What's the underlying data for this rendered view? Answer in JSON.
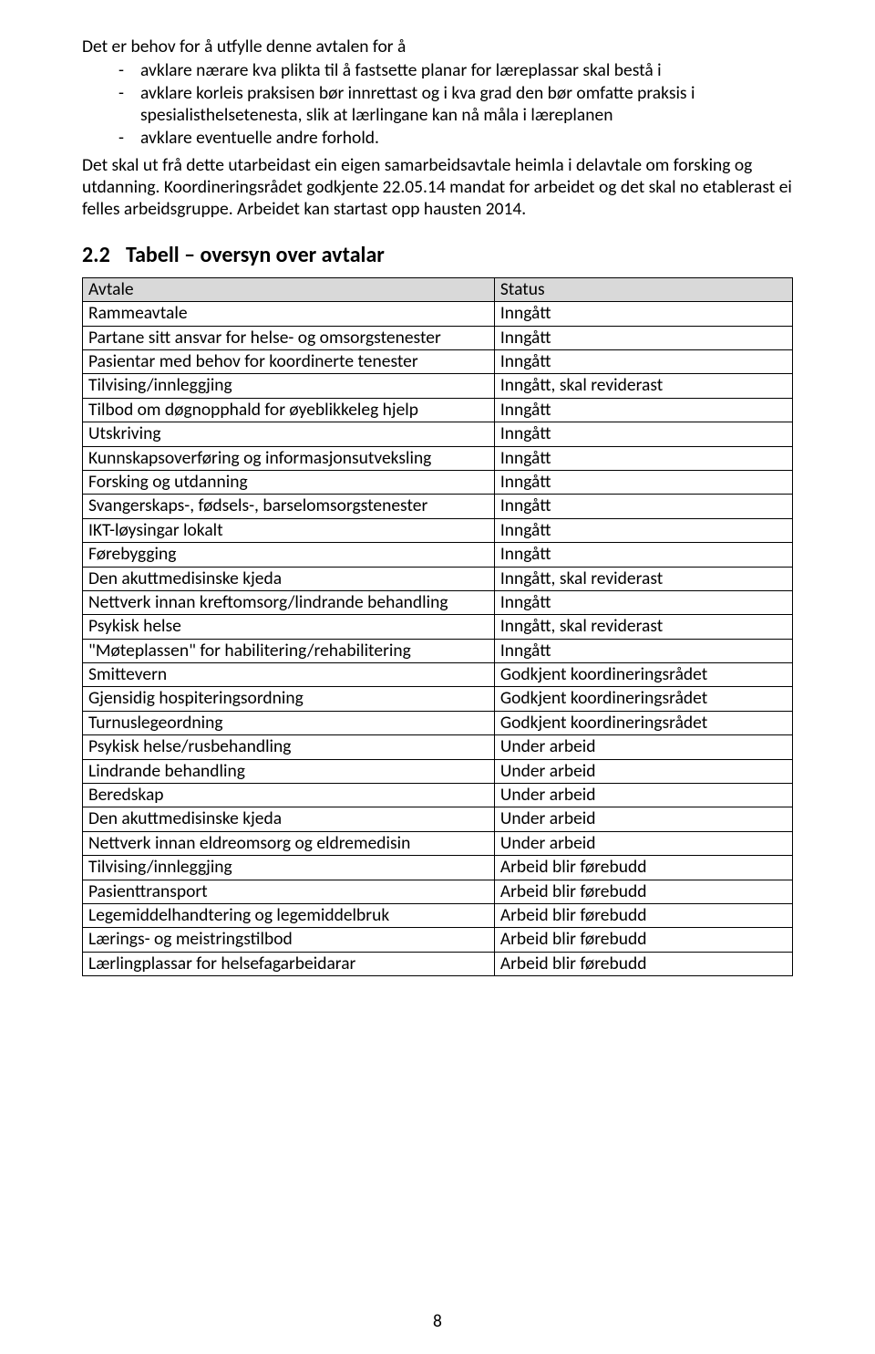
{
  "colors": {
    "page_bg": "#ffffff",
    "text": "#000000",
    "table_border": "#000000",
    "table_header_bg": "#d9d9d9"
  },
  "fonts": {
    "body_family": "Calibri",
    "body_size_pt": 11,
    "h2_size_pt": 13,
    "h2_weight": "bold"
  },
  "intro_line": "Det er behov for å utfylle denne avtalen for å",
  "bullets": [
    "avklare nærare kva plikta til å fastsette planar for læreplassar skal bestå i",
    "avklare korleis praksisen bør innrettast og i kva grad den bør omfatte praksis i spesialisthelsetenesta, slik at lærlingane kan nå måla i læreplanen",
    "avklare eventuelle andre forhold."
  ],
  "body_para": "Det skal ut frå dette utarbeidast ein eigen samarbeidsavtale heimla i delavtale om forsking og utdanning. Koordineringsrådet godkjente 22.05.14 mandat for arbeidet og det skal no etablerast ei felles arbeidsgruppe. Arbeidet kan startast opp hausten 2014.",
  "heading": {
    "num": "2.2",
    "text": "Tabell – oversyn over avtalar"
  },
  "table": {
    "col_widths_pct": [
      58,
      42
    ],
    "header": {
      "avtale": "Avtale",
      "status": "Status"
    },
    "rows": [
      {
        "avtale": "Rammeavtale",
        "status": "Inngått"
      },
      {
        "avtale": "Partane sitt ansvar for helse- og omsorgstenester",
        "status": "Inngått"
      },
      {
        "avtale": "Pasientar med behov for koordinerte tenester",
        "status": "Inngått"
      },
      {
        "avtale": "Tilvising/innleggjing",
        "status": "Inngått, skal reviderast"
      },
      {
        "avtale": "Tilbod om døgnopphald for øyeblikkeleg hjelp",
        "status": "Inngått"
      },
      {
        "avtale": "Utskriving",
        "status": "Inngått"
      },
      {
        "avtale": "Kunnskapsoverføring og informasjonsutveksling",
        "status": "Inngått"
      },
      {
        "avtale": "Forsking og utdanning",
        "status": "Inngått"
      },
      {
        "avtale": "Svangerskaps-, fødsels-, barselomsorgstenester",
        "status": "Inngått"
      },
      {
        "avtale": "IKT-løysingar lokalt",
        "status": "Inngått"
      },
      {
        "avtale": "Førebygging",
        "status": "Inngått"
      },
      {
        "avtale": "Den akuttmedisinske kjeda",
        "status": "Inngått, skal reviderast"
      },
      {
        "avtale": "Nettverk innan kreftomsorg/lindrande behandling",
        "status": "Inngått"
      },
      {
        "avtale": "Psykisk helse",
        "status": "Inngått, skal reviderast"
      },
      {
        "avtale": "\"Møteplassen\" for habilitering/rehabilitering",
        "status": "Inngått"
      },
      {
        "avtale": "Smittevern",
        "status": "Godkjent koordineringsrådet"
      },
      {
        "avtale": "Gjensidig hospiteringsordning",
        "status": "Godkjent koordineringsrådet"
      },
      {
        "avtale": "Turnuslegeordning",
        "status": "Godkjent koordineringsrådet"
      },
      {
        "avtale": "Psykisk helse/rusbehandling",
        "status": "Under arbeid"
      },
      {
        "avtale": "Lindrande behandling",
        "status": "Under arbeid"
      },
      {
        "avtale": "Beredskap",
        "status": "Under arbeid"
      },
      {
        "avtale": "Den akuttmedisinske kjeda",
        "status": "Under arbeid"
      },
      {
        "avtale": "Nettverk innan eldreomsorg og eldremedisin",
        "status": "Under arbeid"
      },
      {
        "avtale": "Tilvising/innleggjing",
        "status": "Arbeid blir førebudd"
      },
      {
        "avtale": "Pasienttransport",
        "status": "Arbeid blir førebudd"
      },
      {
        "avtale": "Legemiddelhandtering og legemiddelbruk",
        "status": "Arbeid blir førebudd"
      },
      {
        "avtale": "Lærings- og meistringstilbod",
        "status": "Arbeid blir førebudd"
      },
      {
        "avtale": "Lærlingplassar for helsefagarbeidarar",
        "status": "Arbeid blir førebudd"
      }
    ]
  },
  "page_number": "8"
}
